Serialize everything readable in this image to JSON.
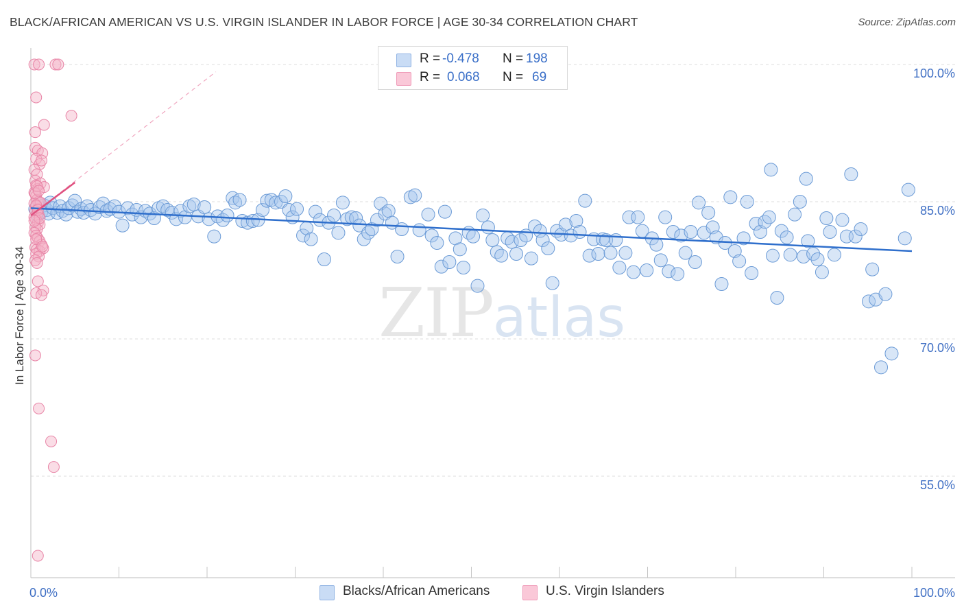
{
  "header": {
    "title": "BLACK/AFRICAN AMERICAN VS U.S. VIRGIN ISLANDER IN LABOR FORCE | AGE 30-34 CORRELATION CHART",
    "source": "Source: ZipAtlas.com"
  },
  "watermark": {
    "zip": "ZIP",
    "atlas": "atlas"
  },
  "legend": {
    "rows": [
      {
        "r_label": "R =",
        "r_value": "-0.478",
        "n_label": "N =",
        "n_value": "198",
        "color": "#a9c8ee"
      },
      {
        "r_label": "R =",
        "r_value": "0.068",
        "n_label": "N =",
        "n_value": "69",
        "color": "#f5b3c8"
      }
    ]
  },
  "bottom_legend": {
    "blue_label": "Blacks/African Americans",
    "pink_label": "U.S. Virgin Islanders"
  },
  "colors": {
    "blue_fill": "#a9c8ee",
    "blue_stroke": "#6a9ad6",
    "blue_line": "#2f6fcc",
    "pink_fill": "#f5b3c8",
    "pink_stroke": "#e884a6",
    "pink_line": "#e0507f",
    "grid": "#dddddd",
    "tick_text": "#3f6fc4"
  },
  "chart_data": {
    "type": "scatter",
    "title": "BLACK/AFRICAN AMERICAN VS U.S. VIRGIN ISLANDER IN LABOR FORCE | AGE 30-34 CORRELATION CHART",
    "xlabel": "",
    "ylabel": "In Labor Force | Age 30-34",
    "x_tick_labels": [
      "0.0%",
      "100.0%"
    ],
    "y_tick_labels": [
      "100.0%",
      "85.0%",
      "70.0%",
      "55.0%"
    ],
    "y_ticks": [
      100,
      85,
      70,
      55
    ],
    "xlim": [
      0,
      100
    ],
    "ylim": [
      43.9,
      101.2
    ],
    "grid": true,
    "legend_position": "top-center",
    "series": [
      {
        "name": "Blacks/African Americans",
        "R": -0.478,
        "N": 198,
        "trend": {
          "x": [
            0,
            100
          ],
          "y": [
            84.3,
            79.6
          ]
        },
        "points": [
          [
            0.5,
            84.2
          ],
          [
            0.8,
            83.5
          ],
          [
            1.0,
            84.8
          ],
          [
            1.2,
            83.9
          ],
          [
            1.5,
            84.6
          ],
          [
            1.8,
            84.1
          ],
          [
            2.0,
            83.7
          ],
          [
            2.2,
            84.9
          ],
          [
            2.5,
            84.3
          ],
          [
            3.0,
            83.8
          ],
          [
            3.3,
            84.5
          ],
          [
            3.6,
            84.0
          ],
          [
            4.0,
            83.6
          ],
          [
            4.3,
            84.3
          ],
          [
            4.7,
            84.6
          ],
          [
            5.0,
            85.1
          ],
          [
            5.3,
            83.9
          ],
          [
            5.7,
            84.2
          ],
          [
            6.0,
            83.8
          ],
          [
            6.4,
            84.5
          ],
          [
            6.8,
            84.1
          ],
          [
            7.3,
            83.7
          ],
          [
            7.8,
            84.4
          ],
          [
            8.2,
            84.8
          ],
          [
            8.6,
            84.0
          ],
          [
            9.0,
            84.2
          ],
          [
            9.5,
            84.5
          ],
          [
            10.0,
            83.9
          ],
          [
            10.4,
            82.4
          ],
          [
            11.0,
            84.3
          ],
          [
            11.5,
            83.6
          ],
          [
            12.0,
            84.1
          ],
          [
            12.5,
            83.3
          ],
          [
            13.0,
            84.0
          ],
          [
            13.5,
            83.7
          ],
          [
            14.0,
            83.2
          ],
          [
            14.5,
            84.3
          ],
          [
            15.0,
            84.5
          ],
          [
            15.5,
            84.1
          ],
          [
            16.0,
            83.8
          ],
          [
            16.5,
            83.1
          ],
          [
            17.0,
            84.0
          ],
          [
            17.5,
            83.3
          ],
          [
            18.0,
            84.5
          ],
          [
            18.5,
            84.7
          ],
          [
            19.0,
            83.4
          ],
          [
            19.7,
            84.4
          ],
          [
            20.2,
            83.1
          ],
          [
            20.8,
            81.2
          ],
          [
            21.2,
            83.4
          ],
          [
            21.8,
            83.0
          ],
          [
            22.3,
            83.5
          ],
          [
            22.9,
            85.4
          ],
          [
            23.2,
            84.9
          ],
          [
            23.7,
            85.2
          ],
          [
            24.0,
            82.9
          ],
          [
            24.6,
            82.7
          ],
          [
            25.2,
            82.9
          ],
          [
            25.8,
            83.0
          ],
          [
            26.3,
            84.1
          ],
          [
            26.8,
            85.1
          ],
          [
            27.3,
            85.2
          ],
          [
            27.8,
            84.9
          ],
          [
            28.4,
            85.0
          ],
          [
            28.9,
            85.6
          ],
          [
            29.3,
            84.1
          ],
          [
            29.7,
            83.3
          ],
          [
            30.2,
            84.2
          ],
          [
            30.9,
            81.3
          ],
          [
            31.3,
            82.1
          ],
          [
            31.8,
            80.9
          ],
          [
            32.3,
            83.9
          ],
          [
            32.8,
            83.0
          ],
          [
            33.3,
            78.7
          ],
          [
            33.8,
            82.7
          ],
          [
            34.4,
            83.5
          ],
          [
            34.9,
            81.6
          ],
          [
            35.4,
            84.9
          ],
          [
            35.9,
            83.1
          ],
          [
            36.4,
            83.3
          ],
          [
            36.9,
            83.2
          ],
          [
            37.3,
            82.4
          ],
          [
            37.8,
            80.9
          ],
          [
            38.3,
            81.6
          ],
          [
            38.7,
            82.0
          ],
          [
            39.3,
            83.0
          ],
          [
            39.7,
            84.8
          ],
          [
            40.2,
            83.7
          ],
          [
            40.6,
            84.0
          ],
          [
            41.0,
            82.7
          ],
          [
            41.6,
            79.0
          ],
          [
            42.1,
            82.0
          ],
          [
            43.1,
            85.5
          ],
          [
            43.6,
            85.7
          ],
          [
            44.1,
            81.9
          ],
          [
            45.1,
            83.6
          ],
          [
            45.5,
            81.3
          ],
          [
            46.1,
            80.5
          ],
          [
            46.6,
            77.9
          ],
          [
            47.0,
            83.9
          ],
          [
            47.5,
            78.4
          ],
          [
            48.2,
            81.0
          ],
          [
            48.7,
            79.8
          ],
          [
            49.1,
            77.8
          ],
          [
            49.7,
            81.6
          ],
          [
            50.2,
            81.2
          ],
          [
            50.7,
            75.8
          ],
          [
            51.3,
            83.5
          ],
          [
            51.9,
            82.2
          ],
          [
            52.4,
            80.8
          ],
          [
            52.9,
            79.5
          ],
          [
            53.4,
            79.1
          ],
          [
            54.1,
            81.0
          ],
          [
            54.6,
            80.6
          ],
          [
            55.1,
            79.3
          ],
          [
            55.6,
            80.8
          ],
          [
            56.2,
            81.3
          ],
          [
            56.8,
            78.8
          ],
          [
            57.2,
            82.3
          ],
          [
            57.8,
            81.8
          ],
          [
            58.1,
            80.8
          ],
          [
            58.7,
            79.9
          ],
          [
            59.2,
            76.1
          ],
          [
            59.7,
            81.8
          ],
          [
            60.2,
            81.4
          ],
          [
            60.7,
            82.5
          ],
          [
            61.3,
            81.3
          ],
          [
            61.9,
            82.9
          ],
          [
            62.3,
            81.7
          ],
          [
            62.9,
            85.1
          ],
          [
            63.4,
            79.1
          ],
          [
            63.9,
            80.9
          ],
          [
            64.4,
            79.3
          ],
          [
            64.9,
            80.9
          ],
          [
            65.3,
            80.8
          ],
          [
            65.8,
            79.4
          ],
          [
            66.4,
            80.8
          ],
          [
            66.8,
            77.8
          ],
          [
            67.5,
            79.4
          ],
          [
            67.9,
            83.3
          ],
          [
            68.4,
            77.3
          ],
          [
            68.9,
            83.3
          ],
          [
            69.4,
            81.8
          ],
          [
            69.9,
            77.5
          ],
          [
            70.5,
            81.0
          ],
          [
            71.0,
            80.3
          ],
          [
            71.5,
            78.6
          ],
          [
            72.0,
            83.3
          ],
          [
            72.4,
            77.4
          ],
          [
            72.9,
            81.7
          ],
          [
            73.4,
            77.1
          ],
          [
            73.8,
            81.3
          ],
          [
            74.3,
            79.4
          ],
          [
            74.9,
            81.7
          ],
          [
            75.4,
            78.4
          ],
          [
            75.8,
            84.9
          ],
          [
            76.4,
            81.6
          ],
          [
            76.9,
            83.8
          ],
          [
            77.4,
            82.2
          ],
          [
            77.8,
            81.1
          ],
          [
            78.4,
            76.0
          ],
          [
            78.8,
            80.5
          ],
          [
            79.4,
            85.5
          ],
          [
            79.9,
            79.6
          ],
          [
            80.4,
            78.5
          ],
          [
            80.9,
            81.0
          ],
          [
            81.3,
            85.0
          ],
          [
            81.8,
            77.2
          ],
          [
            82.3,
            82.6
          ],
          [
            82.8,
            81.7
          ],
          [
            83.3,
            82.8
          ],
          [
            83.8,
            83.3
          ],
          [
            84.2,
            79.1
          ],
          [
            84.7,
            74.5
          ],
          [
            85.2,
            81.8
          ],
          [
            85.8,
            81.1
          ],
          [
            86.2,
            79.2
          ],
          [
            86.7,
            83.6
          ],
          [
            87.3,
            85.0
          ],
          [
            87.7,
            79.0
          ],
          [
            88.2,
            80.7
          ],
          [
            88.8,
            79.3
          ],
          [
            89.3,
            78.7
          ],
          [
            89.8,
            77.3
          ],
          [
            90.3,
            83.2
          ],
          [
            90.7,
            81.7
          ],
          [
            91.2,
            79.2
          ],
          [
            92.1,
            83.0
          ],
          [
            92.6,
            81.2
          ],
          [
            93.1,
            88.0
          ],
          [
            93.6,
            81.2
          ],
          [
            94.2,
            82.0
          ],
          [
            95.1,
            74.1
          ],
          [
            95.5,
            77.6
          ],
          [
            95.9,
            74.3
          ],
          [
            96.5,
            66.9
          ],
          [
            97.0,
            74.9
          ],
          [
            97.7,
            68.4
          ],
          [
            99.2,
            81.0
          ],
          [
            99.6,
            86.3
          ],
          [
            84.0,
            88.5
          ],
          [
            88.0,
            87.5
          ]
        ]
      },
      {
        "name": "U.S. Virgin Islanders",
        "R": 0.068,
        "N": 69,
        "trend": {
          "x": [
            0,
            5
          ],
          "y": [
            83.5,
            87.1
          ]
        },
        "trend_extension": {
          "x": [
            0,
            21
          ],
          "y": [
            83.5,
            99.2
          ]
        },
        "points": [
          [
            0.4,
            100.0
          ],
          [
            0.9,
            100.0
          ],
          [
            2.8,
            100.0
          ],
          [
            3.1,
            100.0
          ],
          [
            0.6,
            96.4
          ],
          [
            1.5,
            93.4
          ],
          [
            4.6,
            94.4
          ],
          [
            0.5,
            92.6
          ],
          [
            0.5,
            90.9
          ],
          [
            0.8,
            90.6
          ],
          [
            1.3,
            90.3
          ],
          [
            0.6,
            89.7
          ],
          [
            1.0,
            89.1
          ],
          [
            1.2,
            89.5
          ],
          [
            0.4,
            88.5
          ],
          [
            0.7,
            88.0
          ],
          [
            0.5,
            87.3
          ],
          [
            0.6,
            86.8
          ],
          [
            0.8,
            86.4
          ],
          [
            1.1,
            87.0
          ],
          [
            1.5,
            86.6
          ],
          [
            0.4,
            86.0
          ],
          [
            0.6,
            85.6
          ],
          [
            0.7,
            85.2
          ],
          [
            0.9,
            85.0
          ],
          [
            0.4,
            84.8
          ],
          [
            0.6,
            84.5
          ],
          [
            0.8,
            84.2
          ],
          [
            1.1,
            84.9
          ],
          [
            0.5,
            84.0
          ],
          [
            0.7,
            83.7
          ],
          [
            0.9,
            83.5
          ],
          [
            0.4,
            83.3
          ],
          [
            0.6,
            83.0
          ],
          [
            0.8,
            82.7
          ],
          [
            1.0,
            82.5
          ],
          [
            0.5,
            82.2
          ],
          [
            0.7,
            82.0
          ],
          [
            0.4,
            81.6
          ],
          [
            0.6,
            81.3
          ],
          [
            0.8,
            81.0
          ],
          [
            1.0,
            80.7
          ],
          [
            1.2,
            80.3
          ],
          [
            0.5,
            80.0
          ],
          [
            0.7,
            79.8
          ],
          [
            1.0,
            79.6
          ],
          [
            1.4,
            79.9
          ],
          [
            0.6,
            79.3
          ],
          [
            0.9,
            79.0
          ],
          [
            0.5,
            78.6
          ],
          [
            0.7,
            78.3
          ],
          [
            0.8,
            76.3
          ],
          [
            1.4,
            75.3
          ],
          [
            0.6,
            75.0
          ],
          [
            1.2,
            74.8
          ],
          [
            0.5,
            68.2
          ],
          [
            0.9,
            62.4
          ],
          [
            2.3,
            58.8
          ],
          [
            2.6,
            56.0
          ],
          [
            0.8,
            46.3
          ],
          [
            0.5,
            85.9
          ],
          [
            0.7,
            86.7
          ],
          [
            0.9,
            86.2
          ],
          [
            0.6,
            84.6
          ],
          [
            0.8,
            84.1
          ],
          [
            1.0,
            83.2
          ],
          [
            0.4,
            82.9
          ],
          [
            0.6,
            80.9
          ],
          [
            1.3,
            80.1
          ]
        ]
      }
    ]
  }
}
